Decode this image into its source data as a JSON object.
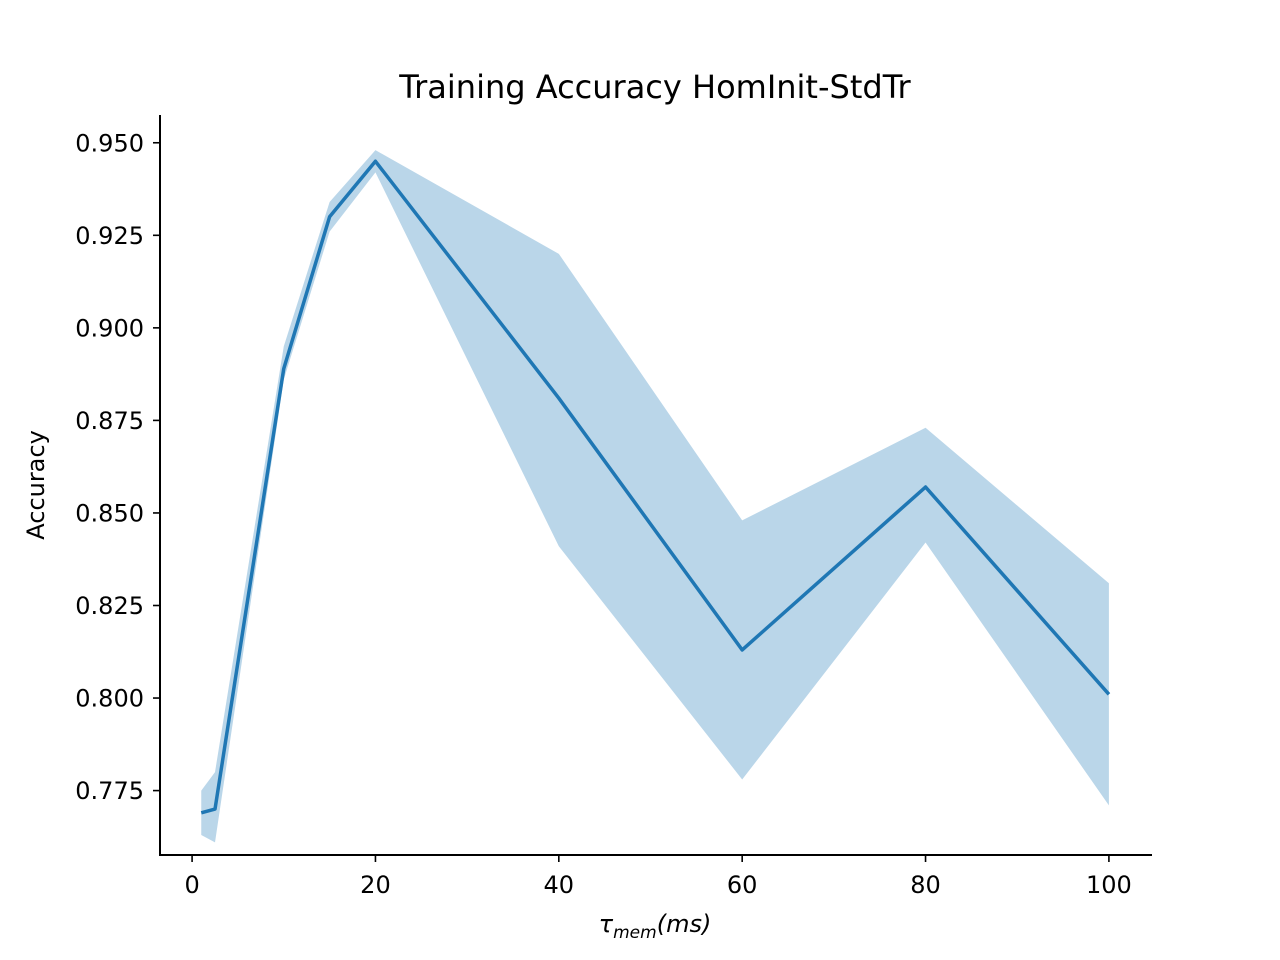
{
  "chart_data": {
    "type": "line",
    "title": "Training Accuracy HomInit-StdTr",
    "xlabel": {
      "base": "τ",
      "subscript": "mem",
      "suffix": "(ms)"
    },
    "ylabel": "Accuracy",
    "xlim": [
      -3.5,
      104.7
    ],
    "ylim": [
      0.7576,
      0.9575
    ],
    "xticks": [
      0,
      20,
      40,
      60,
      80,
      100
    ],
    "xtick_labels": [
      "0",
      "20",
      "40",
      "60",
      "80",
      "100"
    ],
    "yticks": [
      0.775,
      0.8,
      0.825,
      0.85,
      0.875,
      0.9,
      0.925,
      0.95
    ],
    "ytick_labels": [
      "0.775",
      "0.800",
      "0.825",
      "0.850",
      "0.875",
      "0.900",
      "0.925",
      "0.950"
    ],
    "grid": false,
    "series": [
      {
        "x": [
          1,
          2.5,
          10,
          15,
          20,
          40,
          60,
          80,
          100
        ],
        "y": [
          0.769,
          0.77,
          0.889,
          0.93,
          0.945,
          0.881,
          0.813,
          0.857,
          0.801
        ],
        "lower": [
          0.763,
          0.761,
          0.886,
          0.926,
          0.942,
          0.841,
          0.778,
          0.842,
          0.771
        ],
        "upper": [
          0.775,
          0.78,
          0.895,
          0.934,
          0.948,
          0.92,
          0.848,
          0.873,
          0.831
        ],
        "color": "#1f77b4",
        "band_color": "#bad6e9"
      }
    ]
  }
}
